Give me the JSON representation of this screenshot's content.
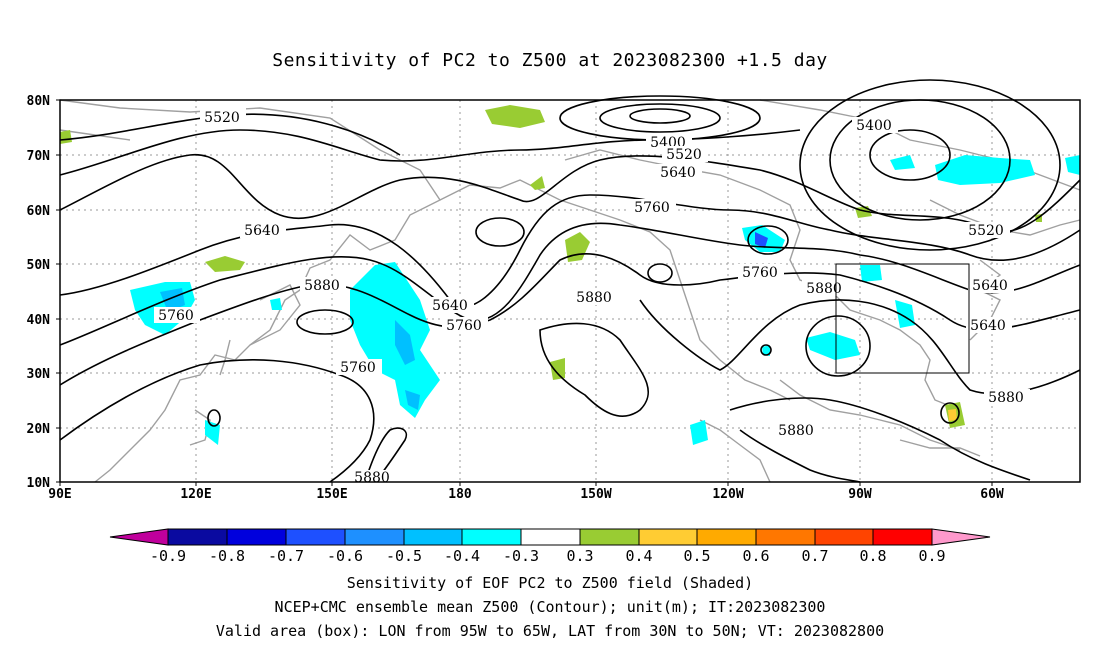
{
  "title": "Sensitivity of PC2 to Z500 at 2023082300 +1.5 day",
  "map": {
    "lat_ticks": [
      "80N",
      "70N",
      "60N",
      "50N",
      "40N",
      "30N",
      "20N",
      "10N"
    ],
    "lon_ticks": [
      "90E",
      "120E",
      "150E",
      "180",
      "150W",
      "120W",
      "90W",
      "60W"
    ],
    "valid_box": {
      "lon_from": "95W",
      "lon_to": "65W",
      "lat_from": "30N",
      "lat_to": "50N"
    },
    "contour_labels": [
      "5520",
      "5400",
      "5520",
      "5640",
      "5400",
      "5520",
      "5640",
      "5760",
      "5640",
      "5880",
      "5640",
      "5760",
      "5760",
      "5880",
      "5760",
      "5880",
      "5640",
      "5760",
      "5880",
      "5880",
      "5880"
    ],
    "colors": {
      "contour": "#000000",
      "coastline": "#a0a0a0",
      "negative_shading": "#00ffff",
      "negative_shading_dark": "#00c0ff",
      "positive_shading": "#99cc33"
    }
  },
  "colorbar": {
    "tick_labels": [
      "-0.9",
      "-0.8",
      "-0.7",
      "-0.6",
      "-0.5",
      "-0.4",
      "-0.3",
      "0.3",
      "0.4",
      "0.5",
      "0.6",
      "0.7",
      "0.8",
      "0.9"
    ],
    "colors": [
      "#c0009c",
      "#0a0aa0",
      "#0000dd",
      "#1e50ff",
      "#1e90ff",
      "#00c0ff",
      "#00ffff",
      "#ffffff",
      "#99cc33",
      "#ffcc33",
      "#ffaa00",
      "#ff7700",
      "#ff4400",
      "#ff0000",
      "#ff99cc"
    ]
  },
  "captions": [
    "Sensitivity of EOF PC2 to Z500 field (Shaded)",
    "NCEP+CMC ensemble mean Z500 (Contour); unit(m); IT:2023082300",
    "Valid area (box): LON from 95W to 65W, LAT from 30N to 50N; VT: 2023082800"
  ]
}
